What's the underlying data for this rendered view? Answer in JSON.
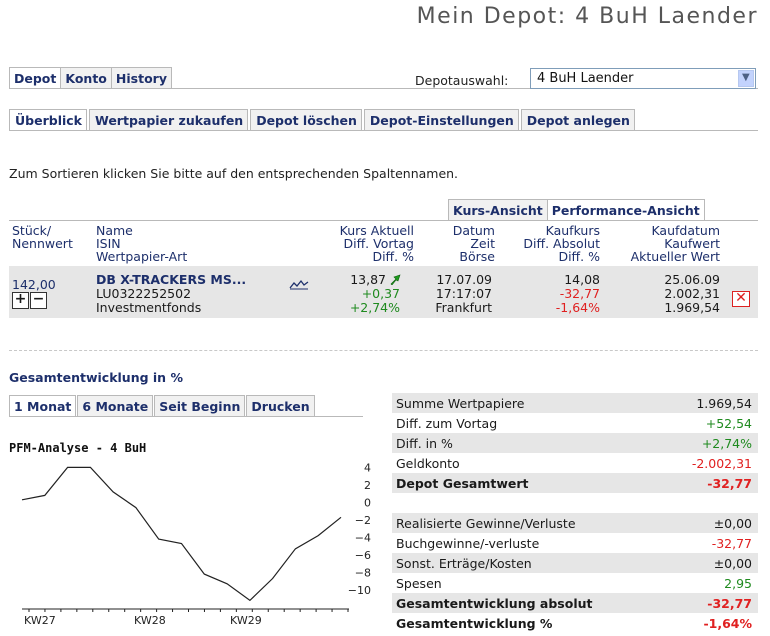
{
  "page_title": "Mein Depot: 4 BuH Laender",
  "main_tabs": [
    "Depot",
    "Konto",
    "History"
  ],
  "depot_select": {
    "label": "Depotauswahl:",
    "value": "4 BuH Laender"
  },
  "sub_tabs": [
    "Überblick",
    "Wertpapier zukaufen",
    "Depot löschen",
    "Depot-Einstellungen",
    "Depot anlegen"
  ],
  "hint": "Zum Sortieren klicken Sie bitte auf den entsprechenden Spaltennamen.",
  "view_tabs": [
    "Kurs-Ansicht",
    "Performance-Ansicht"
  ],
  "columns": {
    "c1": [
      "Stück/",
      "Nennwert"
    ],
    "c2": [
      "Name",
      "ISIN",
      "Wertpapier-Art"
    ],
    "c3": [
      "Kurs Aktuell",
      "Diff. Vortag",
      "Diff. %"
    ],
    "c4": [
      "Datum",
      "Zeit",
      "Börse"
    ],
    "c5": [
      "Kaufkurs",
      "Diff. Absolut",
      "Diff. %"
    ],
    "c6": [
      "Kaufdatum",
      "Kaufwert",
      "Aktueller Wert"
    ]
  },
  "position": {
    "stueck": "142,00",
    "name": "DB X-TRACKERS MS...",
    "isin": "LU0322252502",
    "art": "Investmentfonds",
    "kurs": "13,87",
    "diff_vortag": "+0,37",
    "diff_pct": "+2,74%",
    "datum": "17.07.09",
    "zeit": "17:17:07",
    "boerse": "Frankfurt",
    "kaufkurs": "14,08",
    "diff_absolut": "-32,77",
    "diff_pct2": "-1,64%",
    "kaufdatum": "25.06.09",
    "kaufwert": "2.002,31",
    "aktueller_wert": "1.969,54"
  },
  "section_title": "Gesamtentwicklung in %",
  "chart_tabs": [
    "1 Monat",
    "6 Monate",
    "Seit Beginn",
    "Drucken"
  ],
  "chart_data": {
    "type": "line",
    "title": "PFM-Analyse - 4 BuH",
    "xlabel": "",
    "ylabel": "",
    "x_ticks": [
      "KW27",
      "KW28",
      "KW29"
    ],
    "y_ticks": [
      4,
      2,
      0,
      -2,
      -4,
      -6,
      -8,
      -10
    ],
    "ylim": [
      -11.5,
      4.5
    ],
    "series": [
      {
        "values": [
          0.3,
          0.8,
          4,
          4,
          1.2,
          -0.6,
          -4.2,
          -4.7,
          -8.2,
          -9.3,
          -11.2,
          -8.7,
          -5.3,
          -3.8,
          -1.7
        ]
      }
    ],
    "grid": false
  },
  "summary": [
    {
      "label": "Summe Wertpapiere",
      "value": "1.969,54",
      "color": "#1a1a1a",
      "bold": false,
      "bg": true
    },
    {
      "label": "Diff. zum Vortag",
      "value": "+52,54",
      "color": "#1f8a1f",
      "bold": false,
      "bg": false
    },
    {
      "label": "Diff. in %",
      "value": "+2,74%",
      "color": "#1f8a1f",
      "bold": false,
      "bg": true
    },
    {
      "label": "Geldkonto",
      "value": "-2.002,31",
      "color": "#e02020",
      "bold": false,
      "bg": false
    },
    {
      "label": "Depot Gesamtwert",
      "value": "-32,77",
      "color": "#e02020",
      "bold": true,
      "bg": true
    },
    {
      "gap": true
    },
    {
      "label": "Realisierte Gewinne/Verluste",
      "value": "±0,00",
      "color": "#1a1a1a",
      "bold": false,
      "bg": true
    },
    {
      "label": "Buchgewinne/-verluste",
      "value": "-32,77",
      "color": "#e02020",
      "bold": false,
      "bg": false
    },
    {
      "label": "Sonst. Erträge/Kosten",
      "value": "±0,00",
      "color": "#1a1a1a",
      "bold": false,
      "bg": true
    },
    {
      "label": "Spesen",
      "value": "2,95",
      "color": "#1f8a1f",
      "bold": false,
      "bg": false
    },
    {
      "label": "Gesamtentwicklung absolut",
      "value": "-32,77",
      "color": "#e02020",
      "bold": true,
      "bg": true
    },
    {
      "label": "Gesamtentwicklung %",
      "value": "-1,64%",
      "color": "#e02020",
      "bold": true,
      "bg": false
    }
  ],
  "colors": {
    "accent": "#1d2f6b",
    "positive": "#1f8a1f",
    "negative": "#e02020",
    "row_bg": "#e6e6e6"
  }
}
